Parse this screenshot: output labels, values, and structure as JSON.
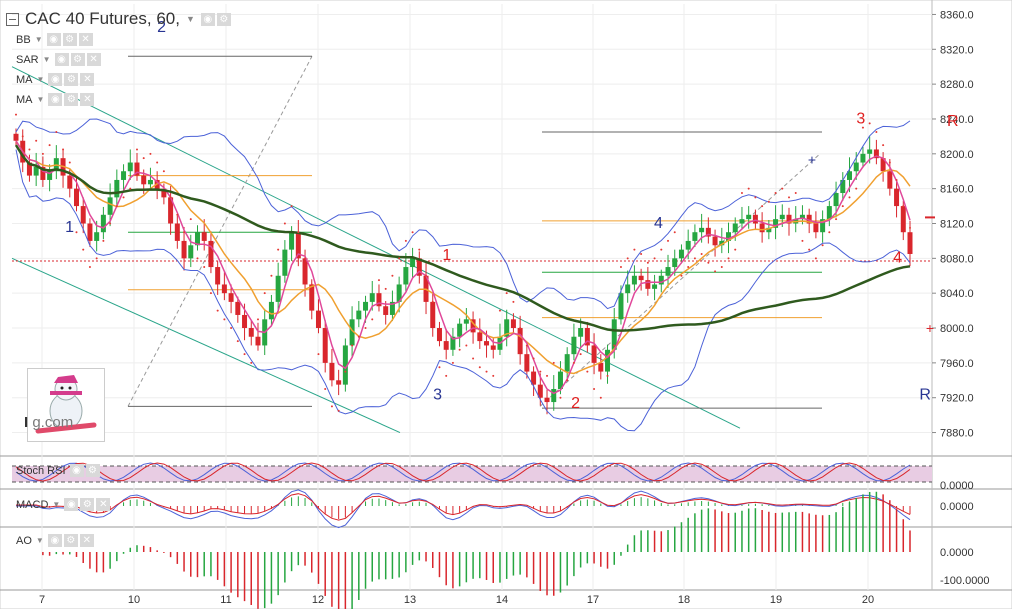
{
  "header": {
    "title": "CAC 40 Futures, 60,",
    "tools": [
      "◉",
      "⚙"
    ]
  },
  "indicators": [
    {
      "label": "BB"
    },
    {
      "label": "SAR"
    },
    {
      "label": "MA"
    },
    {
      "label": "MA"
    }
  ],
  "subpanels": {
    "stoch": {
      "label": "Stoch RSI",
      "value": "0.0000"
    },
    "macd": {
      "label": "MACD",
      "value": "0.0000"
    },
    "ao": {
      "label": "AO",
      "values": [
        "0.0000",
        "-100.0000"
      ]
    }
  },
  "logo": {
    "text_a": "I",
    "text_b": "g.com"
  },
  "colors": {
    "bull": "#26a641",
    "bear": "#d9262c",
    "bb": "#4c62d8",
    "ma_fast": "#f0a030",
    "ma_slow": "#2f5a1e",
    "stoch": "#e0489a",
    "channel": "#2aa58a",
    "sar": "#e53935"
  },
  "chart_data": {
    "type": "candlestick",
    "price_axis": {
      "ticks": [
        8360,
        8320,
        8280,
        8240,
        8200,
        8160,
        8120,
        8080,
        8040,
        8000,
        7960,
        7920,
        7880
      ],
      "ylim": [
        7868,
        8372
      ]
    },
    "x_labels": [
      "7",
      "10",
      "11",
      "12",
      "13",
      "14",
      "17",
      "18",
      "19",
      "20"
    ],
    "wave_labels": [
      {
        "text": "1",
        "color": "blue",
        "price": 8110,
        "time": 0.3
      },
      {
        "text": "2",
        "color": "blue",
        "price": 8340,
        "time": 1.3
      },
      {
        "text": "1",
        "color": "red",
        "price": 8078,
        "time": 4.4
      },
      {
        "text": "3",
        "color": "blue",
        "price": 7918,
        "time": 4.3
      },
      {
        "text": "2",
        "color": "red",
        "price": 7908,
        "time": 5.8
      },
      {
        "text": "4",
        "color": "blue",
        "price": 8115,
        "time": 6.7
      },
      {
        "text": "3",
        "color": "red",
        "price": 8235,
        "time": 8.9
      },
      {
        "text": "4",
        "color": "red",
        "price": 8075,
        "time": 9.3
      },
      {
        "text": "R",
        "color": "red",
        "price": 8232,
        "time": 9.9
      },
      {
        "text": "R",
        "color": "blue",
        "price": 7918,
        "time": 9.6
      }
    ],
    "series": [
      {
        "name": "BB",
        "kind": "bollinger"
      },
      {
        "name": "SAR",
        "kind": "parabolic"
      },
      {
        "name": "MA",
        "kind": "moving-average"
      },
      {
        "name": "MA",
        "kind": "moving-average"
      }
    ],
    "closes": [
      8215,
      8190,
      8175,
      8185,
      8170,
      8180,
      8195,
      8175,
      8160,
      8140,
      8120,
      8100,
      8110,
      8130,
      8150,
      8170,
      8180,
      8190,
      8175,
      8165,
      8170,
      8160,
      8150,
      8120,
      8100,
      8080,
      8095,
      8110,
      8100,
      8070,
      8050,
      8040,
      8030,
      8015,
      8000,
      7990,
      7980,
      8010,
      8030,
      8060,
      8090,
      8110,
      8080,
      8050,
      8020,
      8000,
      7960,
      7940,
      7935,
      7980,
      8010,
      8020,
      8030,
      8040,
      8025,
      8015,
      8030,
      8050,
      8070,
      8080,
      8060,
      8030,
      8000,
      7985,
      7975,
      7990,
      8005,
      8010,
      7995,
      7985,
      7980,
      7975,
      7990,
      8010,
      8000,
      7970,
      7950,
      7935,
      7920,
      7915,
      7930,
      7950,
      7970,
      7990,
      8000,
      7980,
      7960,
      7950,
      7975,
      8010,
      8040,
      8050,
      8060,
      8055,
      8045,
      8050,
      8060,
      8070,
      8080,
      8090,
      8100,
      8110,
      8115,
      8105,
      8095,
      8100,
      8110,
      8120,
      8125,
      8130,
      8120,
      8110,
      8115,
      8125,
      8130,
      8120,
      8125,
      8130,
      8120,
      8110,
      8125,
      8140,
      8155,
      8170,
      8180,
      8190,
      8200,
      8205,
      8195,
      8180,
      8160,
      8140,
      8110,
      8085
    ]
  }
}
